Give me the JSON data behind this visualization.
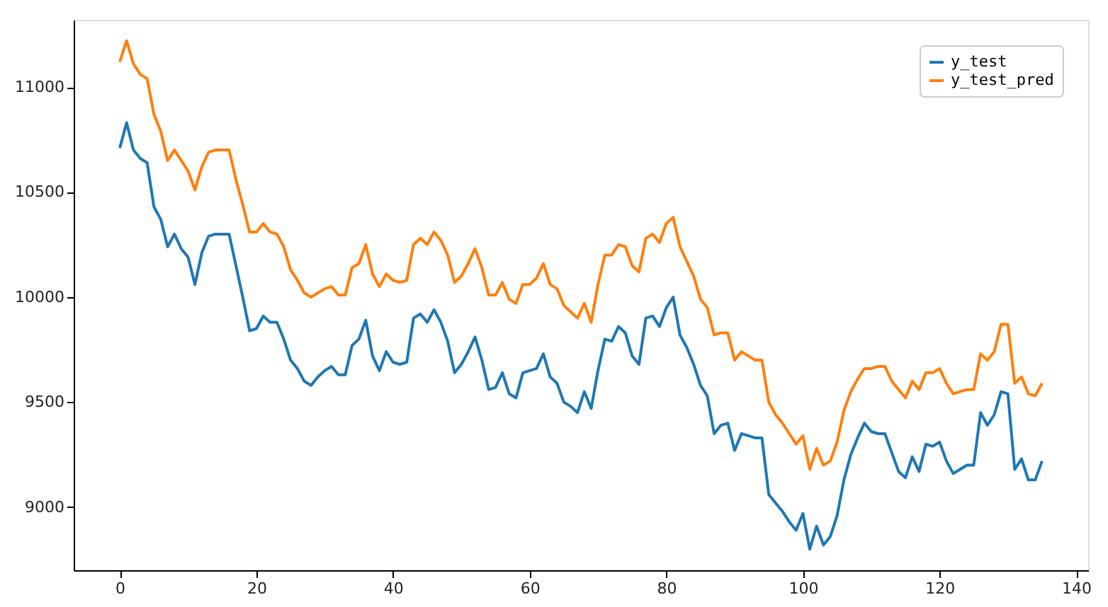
{
  "chart_data": {
    "type": "line",
    "x": [
      0,
      1,
      2,
      3,
      4,
      5,
      6,
      7,
      8,
      9,
      10,
      11,
      12,
      13,
      14,
      15,
      16,
      17,
      18,
      19,
      20,
      21,
      22,
      23,
      24,
      25,
      26,
      27,
      28,
      29,
      30,
      31,
      32,
      33,
      34,
      35,
      36,
      37,
      38,
      39,
      40,
      41,
      42,
      43,
      44,
      45,
      46,
      47,
      48,
      49,
      50,
      51,
      52,
      53,
      54,
      55,
      56,
      57,
      58,
      59,
      60,
      61,
      62,
      63,
      64,
      65,
      66,
      67,
      68,
      69,
      70,
      71,
      72,
      73,
      74,
      75,
      76,
      77,
      78,
      79,
      80,
      81,
      82,
      83,
      84,
      85,
      86,
      87,
      88,
      89,
      90,
      91,
      92,
      93,
      94,
      95,
      96,
      97,
      98,
      99,
      100,
      101,
      102,
      103,
      104,
      105,
      106,
      107,
      108,
      109,
      110,
      111,
      112,
      113,
      114,
      115,
      116,
      117,
      118,
      119,
      120,
      121,
      122,
      123,
      124,
      125,
      126,
      127,
      128,
      129,
      130,
      131,
      132,
      133,
      134,
      135
    ],
    "series": [
      {
        "name": "y_test",
        "color": "#1f77b4",
        "values": [
          10710,
          10830,
          10700,
          10660,
          10640,
          10430,
          10370,
          10240,
          10300,
          10230,
          10190,
          10060,
          10210,
          10290,
          10300,
          10300,
          10300,
          10150,
          10000,
          9840,
          9850,
          9910,
          9880,
          9880,
          9800,
          9700,
          9660,
          9600,
          9580,
          9620,
          9650,
          9670,
          9630,
          9630,
          9770,
          9800,
          9890,
          9720,
          9650,
          9740,
          9690,
          9680,
          9690,
          9900,
          9920,
          9880,
          9940,
          9880,
          9790,
          9640,
          9680,
          9740,
          9810,
          9700,
          9560,
          9570,
          9640,
          9540,
          9520,
          9640,
          9650,
          9660,
          9730,
          9620,
          9590,
          9500,
          9480,
          9450,
          9550,
          9470,
          9650,
          9800,
          9790,
          9860,
          9830,
          9720,
          9680,
          9900,
          9910,
          9860,
          9950,
          10000,
          9820,
          9760,
          9680,
          9580,
          9530,
          9350,
          9390,
          9400,
          9270,
          9350,
          9340,
          9330,
          9330,
          9060,
          9020,
          8980,
          8930,
          8890,
          8970,
          8800,
          8910,
          8820,
          8860,
          8960,
          9130,
          9250,
          9330,
          9400,
          9360,
          9350,
          9350,
          9260,
          9170,
          9140,
          9240,
          9170,
          9300,
          9290,
          9310,
          9220,
          9160,
          9180,
          9200,
          9200,
          9450,
          9390,
          9440,
          9550,
          9540,
          9180,
          9230,
          9130,
          9130,
          9220
        ]
      },
      {
        "name": "y_test_pred",
        "color": "#ff7f0e",
        "values": [
          11120,
          11220,
          11110,
          11060,
          11040,
          10870,
          10790,
          10650,
          10700,
          10650,
          10600,
          10510,
          10620,
          10690,
          10700,
          10700,
          10700,
          10560,
          10440,
          10310,
          10310,
          10350,
          10310,
          10300,
          10240,
          10130,
          10080,
          10020,
          10000,
          10020,
          10040,
          10050,
          10010,
          10010,
          10140,
          10160,
          10250,
          10110,
          10050,
          10110,
          10080,
          10070,
          10080,
          10250,
          10280,
          10250,
          10310,
          10270,
          10200,
          10070,
          10100,
          10160,
          10230,
          10140,
          10010,
          10010,
          10070,
          9990,
          9970,
          10060,
          10060,
          10090,
          10160,
          10060,
          10040,
          9960,
          9930,
          9900,
          9970,
          9880,
          10060,
          10200,
          10200,
          10250,
          10240,
          10150,
          10120,
          10280,
          10300,
          10260,
          10350,
          10380,
          10240,
          10170,
          10100,
          9990,
          9950,
          9820,
          9830,
          9830,
          9700,
          9740,
          9720,
          9700,
          9700,
          9500,
          9440,
          9400,
          9350,
          9300,
          9340,
          9180,
          9280,
          9200,
          9220,
          9310,
          9460,
          9550,
          9610,
          9660,
          9660,
          9670,
          9670,
          9600,
          9560,
          9520,
          9600,
          9560,
          9640,
          9640,
          9660,
          9590,
          9540,
          9550,
          9560,
          9560,
          9730,
          9700,
          9740,
          9870,
          9870,
          9590,
          9620,
          9540,
          9530,
          9590
        ]
      }
    ],
    "xlim": [
      -6.75,
      141.75
    ],
    "xticks": [
      0,
      20,
      40,
      60,
      80,
      100,
      120,
      140
    ],
    "ylim": [
      8700,
      11320
    ],
    "yticks": [
      9000,
      9500,
      10000,
      10500,
      11000
    ],
    "grid": false,
    "legend": "top right",
    "line_style": "solid",
    "marker": "none"
  }
}
